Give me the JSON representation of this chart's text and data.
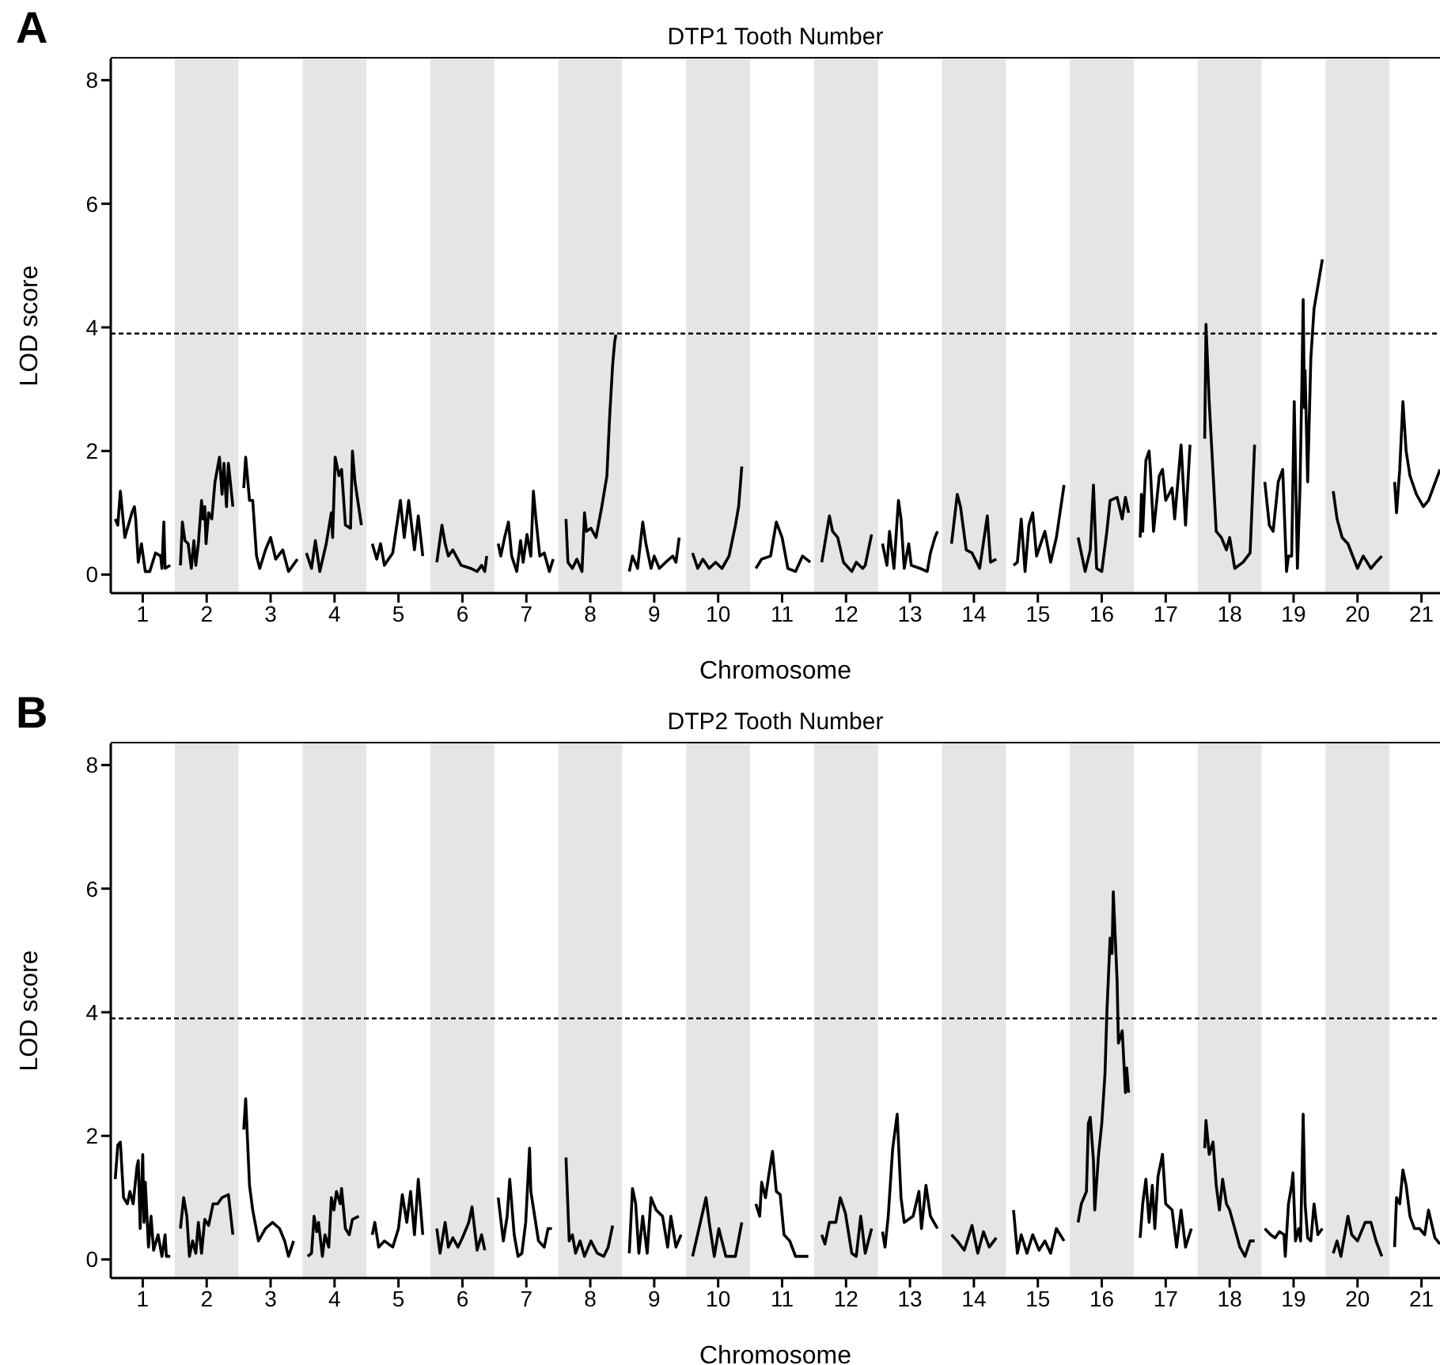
{
  "chart_data": [
    {
      "type": "line",
      "title": "DTP1 Tooth Number",
      "xlabel": "Chromosome",
      "ylabel": "LOD score",
      "annotations": [
        "A"
      ],
      "color": "#000000",
      "xlim": [
        0.5,
        21.29
      ],
      "ylim": [
        -0.3,
        8.35
      ],
      "yticks": [
        0,
        2,
        4,
        6,
        8
      ],
      "xticks": [
        1,
        2,
        3,
        4,
        5,
        6,
        7,
        8,
        9,
        10,
        11,
        12,
        13,
        14,
        15,
        16,
        17,
        18,
        19,
        20,
        21
      ],
      "bands": [
        {
          "axis": "x",
          "from": 1.5,
          "to": 2.5,
          "color": "#e5e5e5"
        },
        {
          "axis": "x",
          "from": 3.5,
          "to": 4.5,
          "color": "#e5e5e5"
        },
        {
          "axis": "x",
          "from": 5.5,
          "to": 6.5,
          "color": "#e5e5e5"
        },
        {
          "axis": "x",
          "from": 7.5,
          "to": 8.5,
          "color": "#e5e5e5"
        },
        {
          "axis": "x",
          "from": 9.5,
          "to": 10.5,
          "color": "#e5e5e5"
        },
        {
          "axis": "x",
          "from": 11.5,
          "to": 12.5,
          "color": "#e5e5e5"
        },
        {
          "axis": "x",
          "from": 13.5,
          "to": 14.5,
          "color": "#e5e5e5"
        },
        {
          "axis": "x",
          "from": 15.5,
          "to": 16.5,
          "color": "#e5e5e5"
        },
        {
          "axis": "x",
          "from": 17.5,
          "to": 18.5,
          "color": "#e5e5e5"
        },
        {
          "axis": "x",
          "from": 19.5,
          "to": 20.5,
          "color": "#e5e5e5"
        }
      ],
      "ref_lines": [
        {
          "axis": "y",
          "value": 3.9,
          "line_style": "dashed",
          "color": "#000000"
        }
      ],
      "series": [
        {
          "x": [
            0.57,
            0.61,
            0.65,
            0.72,
            0.83,
            0.87,
            0.89,
            0.93,
            0.98,
            1.04,
            1.11,
            1.2,
            1.28,
            1.3,
            1.33,
            1.35,
            1.43
          ],
          "values": [
            0.9,
            0.8,
            1.35,
            0.6,
            1.0,
            1.1,
            0.9,
            0.2,
            0.5,
            0.05,
            0.05,
            0.35,
            0.3,
            0.1,
            0.85,
            0.1,
            0.15
          ]
        },
        {
          "x": [
            1.59,
            1.62,
            1.66,
            1.71,
            1.76,
            1.8,
            1.83,
            1.87,
            1.92,
            1.94,
            1.97,
            1.99,
            2.03,
            2.08,
            2.13,
            2.2,
            2.24,
            2.27,
            2.31,
            2.34,
            2.41
          ],
          "values": [
            0.15,
            0.85,
            0.55,
            0.5,
            0.1,
            0.55,
            0.15,
            0.5,
            1.2,
            0.9,
            1.1,
            0.5,
            1.0,
            0.9,
            1.5,
            1.9,
            1.3,
            1.8,
            1.1,
            1.8,
            1.1
          ]
        },
        {
          "x": [
            2.58,
            2.61,
            2.67,
            2.72,
            2.78,
            2.83,
            2.92,
            3.0,
            3.08,
            3.19,
            3.28,
            3.42
          ],
          "values": [
            1.4,
            1.9,
            1.2,
            1.2,
            0.3,
            0.1,
            0.4,
            0.6,
            0.25,
            0.4,
            0.05,
            0.25
          ]
        },
        {
          "x": [
            3.56,
            3.64,
            3.7,
            3.77,
            3.87,
            3.95,
            3.97,
            4.01,
            4.07,
            4.11,
            4.17,
            4.25,
            4.28,
            4.32,
            4.42
          ],
          "values": [
            0.35,
            0.1,
            0.55,
            0.05,
            0.5,
            1.0,
            0.6,
            1.9,
            1.6,
            1.7,
            0.8,
            0.75,
            2.0,
            1.5,
            0.8
          ]
        },
        {
          "x": [
            4.59,
            4.66,
            4.72,
            4.78,
            4.91,
            5.03,
            5.09,
            5.16,
            5.25,
            5.31,
            5.38
          ],
          "values": [
            0.5,
            0.25,
            0.5,
            0.15,
            0.35,
            1.2,
            0.6,
            1.2,
            0.4,
            0.95,
            0.3
          ]
        },
        {
          "x": [
            5.6,
            5.68,
            5.73,
            5.78,
            5.85,
            5.98,
            6.13,
            6.23,
            6.3,
            6.35,
            6.38
          ],
          "values": [
            0.2,
            0.8,
            0.5,
            0.3,
            0.4,
            0.15,
            0.1,
            0.05,
            0.15,
            0.05,
            0.3
          ]
        },
        {
          "x": [
            6.56,
            6.6,
            6.66,
            6.72,
            6.77,
            6.85,
            6.91,
            6.95,
            7.01,
            7.07,
            7.11,
            7.15,
            7.21,
            7.28,
            7.36,
            7.42
          ],
          "values": [
            0.5,
            0.3,
            0.6,
            0.85,
            0.3,
            0.05,
            0.55,
            0.2,
            0.65,
            0.3,
            1.35,
            0.9,
            0.3,
            0.35,
            0.05,
            0.25
          ]
        },
        {
          "x": [
            7.62,
            7.65,
            7.72,
            7.79,
            7.87,
            7.91,
            7.94,
            8.01,
            8.09,
            8.18,
            8.26,
            8.3,
            8.35,
            8.38,
            8.4
          ],
          "values": [
            0.9,
            0.2,
            0.1,
            0.25,
            0.05,
            1.0,
            0.7,
            0.75,
            0.6,
            1.1,
            1.6,
            2.5,
            3.4,
            3.75,
            3.88
          ]
        },
        {
          "x": [
            8.61,
            8.66,
            8.74,
            8.82,
            8.87,
            8.95,
            9.0,
            9.08,
            9.18,
            9.29,
            9.34,
            9.39
          ],
          "values": [
            0.05,
            0.3,
            0.1,
            0.85,
            0.5,
            0.1,
            0.3,
            0.1,
            0.2,
            0.3,
            0.2,
            0.6
          ]
        },
        {
          "x": [
            9.6,
            9.68,
            9.76,
            9.86,
            9.96,
            10.06,
            10.17,
            10.27,
            10.32,
            10.37
          ],
          "values": [
            0.35,
            0.1,
            0.25,
            0.1,
            0.2,
            0.1,
            0.3,
            0.8,
            1.1,
            1.75
          ]
        },
        {
          "x": [
            10.59,
            10.68,
            10.82,
            10.91,
            11.0,
            11.09,
            11.21,
            11.32,
            11.44
          ],
          "values": [
            0.1,
            0.25,
            0.3,
            0.85,
            0.6,
            0.1,
            0.05,
            0.3,
            0.2
          ]
        },
        {
          "x": [
            11.62,
            11.74,
            11.79,
            11.87,
            11.96,
            12.09,
            12.16,
            12.26,
            12.3,
            12.4
          ],
          "values": [
            0.2,
            0.95,
            0.7,
            0.6,
            0.2,
            0.05,
            0.2,
            0.1,
            0.15,
            0.65
          ]
        },
        {
          "x": [
            12.57,
            12.64,
            12.68,
            12.75,
            12.8,
            12.82,
            12.86,
            12.91,
            12.98,
            13.02,
            13.16,
            13.27,
            13.32,
            13.39,
            13.43
          ],
          "values": [
            0.5,
            0.15,
            0.7,
            0.1,
            0.9,
            1.2,
            0.9,
            0.1,
            0.5,
            0.15,
            0.1,
            0.05,
            0.35,
            0.6,
            0.7
          ]
        },
        {
          "x": [
            13.65,
            13.74,
            13.79,
            13.88,
            13.97,
            14.09,
            14.21,
            14.26,
            14.35
          ],
          "values": [
            0.5,
            1.3,
            1.1,
            0.4,
            0.35,
            0.1,
            0.95,
            0.2,
            0.25
          ]
        },
        {
          "x": [
            14.62,
            14.68,
            14.74,
            14.8,
            14.86,
            14.92,
            14.98,
            15.11,
            15.2,
            15.29,
            15.41
          ],
          "values": [
            0.15,
            0.2,
            0.9,
            0.05,
            0.8,
            1.0,
            0.3,
            0.7,
            0.2,
            0.6,
            1.45
          ]
        },
        {
          "x": [
            15.63,
            15.74,
            15.82,
            15.87,
            15.92,
            16.0,
            16.08,
            16.13,
            16.24,
            16.32,
            16.37,
            16.42
          ],
          "values": [
            0.6,
            0.05,
            0.4,
            1.45,
            0.1,
            0.05,
            0.7,
            1.2,
            1.25,
            0.9,
            1.25,
            1.0
          ]
        },
        {
          "x": [
            16.6,
            16.62,
            16.64,
            16.69,
            16.74,
            16.76,
            16.81,
            16.9,
            16.95,
            17.0,
            17.1,
            17.14,
            17.24,
            17.31,
            17.38
          ],
          "values": [
            0.6,
            1.3,
            0.7,
            1.85,
            2.0,
            1.7,
            0.7,
            1.6,
            1.7,
            1.2,
            1.4,
            0.9,
            2.1,
            0.8,
            2.1
          ]
        },
        {
          "x": [
            17.61,
            17.63,
            17.68,
            17.79,
            17.87,
            17.95,
            18.0,
            18.08,
            18.21,
            18.32,
            18.39
          ],
          "values": [
            2.2,
            4.05,
            2.8,
            0.7,
            0.6,
            0.4,
            0.6,
            0.1,
            0.2,
            0.35,
            2.1
          ]
        },
        {
          "x": [
            18.55,
            18.62,
            18.68,
            18.76,
            18.83,
            18.89,
            18.92,
            18.97,
            19.01,
            19.06,
            19.1,
            19.13,
            19.15,
            19.17,
            19.18,
            19.22,
            19.27,
            19.32,
            19.45
          ],
          "values": [
            1.5,
            0.8,
            0.7,
            1.5,
            1.7,
            0.05,
            0.3,
            0.3,
            2.8,
            0.1,
            1.4,
            3.1,
            4.45,
            2.7,
            3.3,
            1.5,
            3.5,
            4.3,
            5.1
          ]
        },
        {
          "x": [
            19.62,
            19.68,
            19.76,
            19.85,
            20.0,
            20.09,
            20.21,
            20.29,
            20.38
          ],
          "values": [
            1.35,
            0.9,
            0.6,
            0.5,
            0.1,
            0.3,
            0.1,
            0.2,
            0.3
          ]
        },
        {
          "x": [
            20.58,
            20.61,
            20.66,
            20.71,
            20.76,
            20.82,
            20.92,
            21.03,
            21.11,
            21.29
          ],
          "values": [
            1.5,
            1.0,
            1.7,
            2.8,
            2.0,
            1.6,
            1.3,
            1.1,
            1.2,
            1.7
          ]
        }
      ]
    },
    {
      "type": "line",
      "title": "DTP2 Tooth Number",
      "xlabel": "Chromosome",
      "ylabel": "LOD score",
      "annotations": [
        "B"
      ],
      "color": "#000000",
      "xlim": [
        0.5,
        21.29
      ],
      "ylim": [
        -0.3,
        8.35
      ],
      "yticks": [
        0,
        2,
        4,
        6,
        8
      ],
      "xticks": [
        1,
        2,
        3,
        4,
        5,
        6,
        7,
        8,
        9,
        10,
        11,
        12,
        13,
        14,
        15,
        16,
        17,
        18,
        19,
        20,
        21
      ],
      "bands": [
        {
          "axis": "x",
          "from": 1.5,
          "to": 2.5,
          "color": "#e5e5e5"
        },
        {
          "axis": "x",
          "from": 3.5,
          "to": 4.5,
          "color": "#e5e5e5"
        },
        {
          "axis": "x",
          "from": 5.5,
          "to": 6.5,
          "color": "#e5e5e5"
        },
        {
          "axis": "x",
          "from": 7.5,
          "to": 8.5,
          "color": "#e5e5e5"
        },
        {
          "axis": "x",
          "from": 9.5,
          "to": 10.5,
          "color": "#e5e5e5"
        },
        {
          "axis": "x",
          "from": 11.5,
          "to": 12.5,
          "color": "#e5e5e5"
        },
        {
          "axis": "x",
          "from": 13.5,
          "to": 14.5,
          "color": "#e5e5e5"
        },
        {
          "axis": "x",
          "from": 15.5,
          "to": 16.5,
          "color": "#e5e5e5"
        },
        {
          "axis": "x",
          "from": 17.5,
          "to": 18.5,
          "color": "#e5e5e5"
        },
        {
          "axis": "x",
          "from": 19.5,
          "to": 20.5,
          "color": "#e5e5e5"
        }
      ],
      "ref_lines": [
        {
          "axis": "y",
          "value": 3.9,
          "line_style": "dashed",
          "color": "#000000"
        }
      ],
      "series": [
        {
          "x": [
            0.57,
            0.61,
            0.65,
            0.7,
            0.76,
            0.8,
            0.85,
            0.91,
            0.93,
            0.96,
            1.0,
            1.02,
            1.04,
            1.09,
            1.13,
            1.17,
            1.24,
            1.3,
            1.35,
            1.37,
            1.43
          ],
          "values": [
            1.3,
            1.85,
            1.9,
            1.0,
            0.9,
            1.1,
            0.9,
            1.5,
            1.6,
            0.5,
            1.7,
            0.6,
            1.25,
            0.2,
            0.7,
            0.15,
            0.4,
            0.05,
            0.4,
            0.05,
            0.05
          ]
        },
        {
          "x": [
            1.59,
            1.64,
            1.69,
            1.73,
            1.78,
            1.83,
            1.87,
            1.92,
            1.97,
            2.03,
            2.1,
            2.17,
            2.24,
            2.34,
            2.41
          ],
          "values": [
            0.5,
            1.0,
            0.7,
            0.05,
            0.3,
            0.1,
            0.6,
            0.1,
            0.65,
            0.55,
            0.9,
            0.9,
            1.0,
            1.05,
            0.4
          ]
        },
        {
          "x": [
            2.58,
            2.61,
            2.67,
            2.72,
            2.81,
            2.92,
            3.03,
            3.14,
            3.22,
            3.28,
            3.36
          ],
          "values": [
            2.1,
            2.6,
            1.2,
            0.8,
            0.3,
            0.5,
            0.6,
            0.5,
            0.3,
            0.05,
            0.3
          ]
        },
        {
          "x": [
            3.58,
            3.64,
            3.68,
            3.72,
            3.75,
            3.81,
            3.85,
            3.91,
            3.95,
            3.99,
            4.03,
            4.09,
            4.11,
            4.17,
            4.23,
            4.28,
            4.38
          ],
          "values": [
            0.05,
            0.1,
            0.7,
            0.45,
            0.6,
            0.05,
            0.4,
            0.2,
            1.0,
            0.8,
            1.1,
            0.9,
            1.15,
            0.5,
            0.4,
            0.65,
            0.7
          ]
        },
        {
          "x": [
            4.59,
            4.63,
            4.69,
            4.78,
            4.91,
            5.0,
            5.06,
            5.13,
            5.19,
            5.25,
            5.31,
            5.38
          ],
          "values": [
            0.4,
            0.6,
            0.2,
            0.3,
            0.2,
            0.5,
            1.05,
            0.6,
            1.1,
            0.4,
            1.3,
            0.4
          ]
        },
        {
          "x": [
            5.6,
            5.65,
            5.73,
            5.78,
            5.85,
            5.93,
            6.0,
            6.1,
            6.15,
            6.23,
            6.3,
            6.35
          ],
          "values": [
            0.5,
            0.1,
            0.6,
            0.2,
            0.35,
            0.2,
            0.35,
            0.6,
            0.85,
            0.15,
            0.4,
            0.15
          ]
        },
        {
          "x": [
            6.56,
            6.64,
            6.7,
            6.74,
            6.81,
            6.87,
            6.93,
            6.99,
            7.05,
            7.07,
            7.13,
            7.19,
            7.28,
            7.34,
            7.4
          ],
          "values": [
            1.0,
            0.3,
            0.7,
            1.3,
            0.4,
            0.05,
            0.1,
            0.6,
            1.8,
            1.1,
            0.7,
            0.3,
            0.2,
            0.5,
            0.5
          ]
        },
        {
          "x": [
            7.62,
            7.67,
            7.72,
            7.77,
            7.84,
            7.91,
            8.01,
            8.11,
            8.21,
            8.28,
            8.35
          ],
          "values": [
            1.65,
            0.3,
            0.4,
            0.1,
            0.3,
            0.05,
            0.3,
            0.1,
            0.05,
            0.2,
            0.55
          ]
        },
        {
          "x": [
            8.61,
            8.66,
            8.71,
            8.76,
            8.82,
            8.89,
            8.95,
            9.03,
            9.13,
            9.21,
            9.26,
            9.34,
            9.42
          ],
          "values": [
            0.1,
            1.15,
            0.9,
            0.1,
            0.7,
            0.1,
            1.0,
            0.8,
            0.7,
            0.2,
            0.7,
            0.2,
            0.4
          ]
        },
        {
          "x": [
            9.6,
            9.81,
            9.86,
            9.94,
            10.01,
            10.12,
            10.27,
            10.37
          ],
          "values": [
            0.05,
            1.0,
            0.6,
            0.05,
            0.5,
            0.05,
            0.05,
            0.6
          ]
        },
        {
          "x": [
            10.59,
            10.65,
            10.68,
            10.74,
            10.79,
            10.85,
            10.91,
            10.97,
            11.03,
            11.12,
            11.21,
            11.41
          ],
          "values": [
            0.9,
            0.7,
            1.25,
            1.0,
            1.35,
            1.75,
            1.1,
            1.05,
            0.4,
            0.3,
            0.05,
            0.05
          ]
        },
        {
          "x": [
            11.62,
            11.67,
            11.74,
            11.84,
            11.91,
            11.99,
            12.09,
            12.16,
            12.23,
            12.3,
            12.4
          ],
          "values": [
            0.4,
            0.25,
            0.6,
            0.6,
            1.0,
            0.75,
            0.1,
            0.05,
            0.7,
            0.1,
            0.5
          ]
        },
        {
          "x": [
            12.57,
            12.61,
            12.66,
            12.73,
            12.8,
            12.86,
            12.91,
            13.05,
            13.14,
            13.18,
            13.25,
            13.32,
            13.43
          ],
          "values": [
            0.45,
            0.2,
            0.7,
            1.8,
            2.35,
            1.0,
            0.6,
            0.7,
            1.1,
            0.5,
            1.2,
            0.7,
            0.5
          ]
        },
        {
          "x": [
            13.65,
            13.74,
            13.85,
            13.97,
            14.06,
            14.15,
            14.24,
            14.35
          ],
          "values": [
            0.4,
            0.3,
            0.15,
            0.55,
            0.1,
            0.45,
            0.2,
            0.35
          ]
        },
        {
          "x": [
            14.62,
            14.68,
            14.74,
            14.83,
            14.92,
            15.02,
            15.11,
            15.2,
            15.29,
            15.41
          ],
          "values": [
            0.8,
            0.1,
            0.4,
            0.1,
            0.4,
            0.15,
            0.3,
            0.1,
            0.5,
            0.3
          ]
        },
        {
          "x": [
            15.63,
            15.68,
            15.76,
            15.79,
            15.82,
            15.87,
            15.89,
            15.95,
            16.0,
            16.05,
            16.08,
            16.13,
            16.16,
            16.18,
            16.24,
            16.26,
            16.32,
            16.37,
            16.39,
            16.42
          ],
          "values": [
            0.6,
            0.9,
            1.1,
            2.2,
            2.3,
            1.6,
            0.8,
            1.7,
            2.2,
            3.0,
            4.0,
            5.2,
            4.95,
            5.95,
            4.5,
            3.5,
            3.7,
            2.7,
            3.1,
            2.7
          ]
        },
        {
          "x": [
            16.6,
            16.64,
            16.69,
            16.74,
            16.79,
            16.83,
            16.88,
            16.95,
            17.0,
            17.1,
            17.17,
            17.24,
            17.31,
            17.4
          ],
          "values": [
            0.35,
            0.9,
            1.3,
            0.6,
            1.2,
            0.5,
            1.35,
            1.7,
            0.9,
            0.8,
            0.2,
            0.8,
            0.2,
            0.5
          ]
        },
        {
          "x": [
            17.61,
            17.63,
            17.68,
            17.74,
            17.79,
            17.84,
            17.89,
            17.95,
            18.0,
            18.08,
            18.16,
            18.24,
            18.32,
            18.39
          ],
          "values": [
            1.8,
            2.25,
            1.7,
            1.9,
            1.2,
            0.8,
            1.3,
            0.9,
            0.8,
            0.5,
            0.2,
            0.05,
            0.3,
            0.3
          ]
        },
        {
          "x": [
            18.55,
            18.64,
            18.71,
            18.78,
            18.85,
            18.87,
            18.92,
            18.97,
            18.99,
            19.03,
            19.08,
            19.11,
            19.15,
            19.18,
            19.22,
            19.27,
            19.32,
            19.38,
            19.45
          ],
          "values": [
            0.5,
            0.4,
            0.35,
            0.45,
            0.4,
            0.05,
            0.9,
            1.2,
            1.4,
            0.3,
            0.5,
            0.3,
            2.35,
            0.9,
            0.35,
            0.3,
            0.9,
            0.4,
            0.5
          ]
        },
        {
          "x": [
            19.62,
            19.68,
            19.74,
            19.85,
            19.91,
            20.0,
            20.12,
            20.21,
            20.29,
            20.38
          ],
          "values": [
            0.1,
            0.3,
            0.05,
            0.7,
            0.4,
            0.3,
            0.6,
            0.6,
            0.3,
            0.05
          ]
        },
        {
          "x": [
            20.58,
            20.61,
            20.66,
            20.71,
            20.76,
            20.82,
            20.89,
            20.97,
            21.05,
            21.11,
            21.21,
            21.29
          ],
          "values": [
            0.2,
            1.0,
            0.9,
            1.45,
            1.2,
            0.7,
            0.5,
            0.5,
            0.4,
            0.8,
            0.35,
            0.25
          ]
        }
      ]
    }
  ]
}
